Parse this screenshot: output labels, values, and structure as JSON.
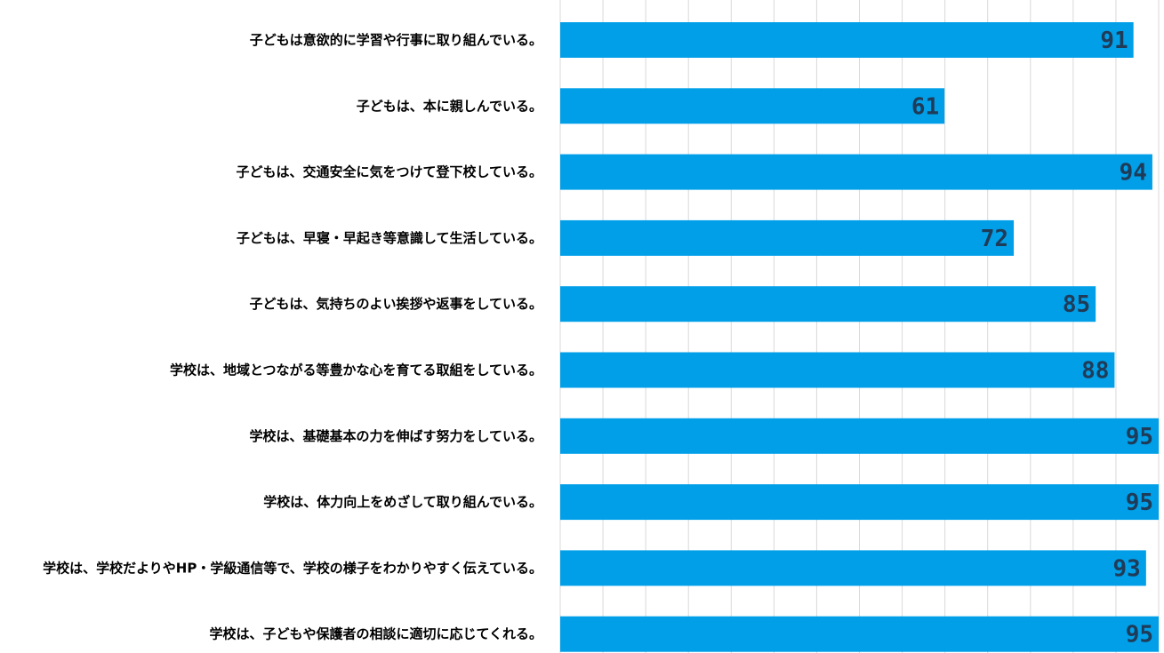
{
  "chart_data": {
    "type": "bar",
    "orientation": "horizontal",
    "categories": [
      "子どもは意欲的に学習や行事に取り組んでいる。",
      "子どもは、本に親しんでいる。",
      "子どもは、交通安全に気をつけて登下校している。",
      "子どもは、早寝・早起き等意識して生活している。",
      "子どもは、気持ちのよい挨拶や返事をしている。",
      "学校は、地域とつながる等豊かな心を育てる取組をしている。",
      "学校は、基礎基本の力を伸ばす努力をしている。",
      "学校は、体力向上をめざして取り組んでいる。",
      "学校は、学校だよりやHP・学級通信等で、学校の様子をわかりやすく伝えている。",
      "学校は、子どもや保護者の相談に適切に応じてくれる。"
    ],
    "values": [
      91,
      61,
      94,
      72,
      85,
      88,
      95,
      95,
      93,
      95
    ],
    "data_labels": [
      "91",
      "61",
      "94",
      "72",
      "85",
      "88",
      "95",
      "95",
      "93",
      "95"
    ],
    "xlim": [
      0,
      95
    ],
    "grid": true,
    "gridline_count": 14,
    "colors": {
      "bar": "#009FE8",
      "grid": "#D9D9D9",
      "label_text": "#000000",
      "data_label_text": "#1F3B57"
    }
  }
}
